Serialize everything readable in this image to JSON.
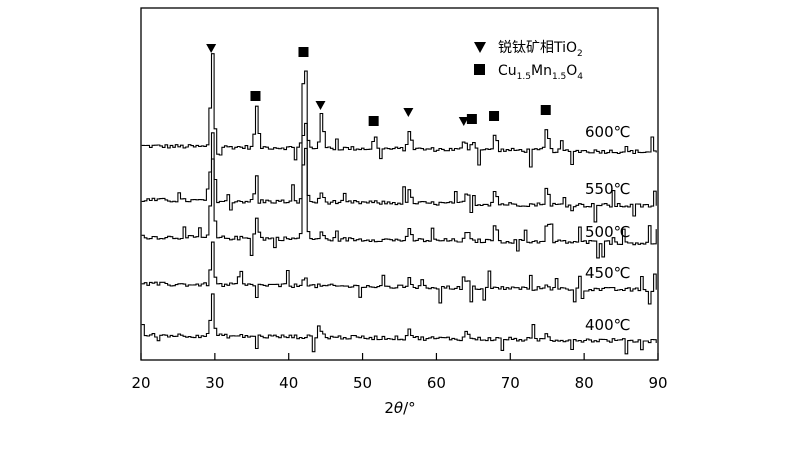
{
  "chart_data": {
    "type": "line",
    "xlabel_parts": {
      "prefix": "2",
      "symbol": "θ",
      "suffix": "/°"
    },
    "xlim": [
      20,
      90
    ],
    "xticks": [
      20,
      30,
      40,
      50,
      60,
      70,
      80,
      90
    ],
    "y_ticks_shown": false,
    "grid": false,
    "legend": {
      "placement": "top-right",
      "entries": [
        {
          "marker": "triangle-down",
          "label": "锐钛矿相TiO",
          "subscript": "2"
        },
        {
          "marker": "square",
          "parts": [
            {
              "t": "Cu",
              "sub": false
            },
            {
              "t": "1.5",
              "sub": true
            },
            {
              "t": "Mn",
              "sub": false
            },
            {
              "t": "1.5",
              "sub": true
            },
            {
              "t": "O",
              "sub": false
            },
            {
              "t": "4",
              "sub": true
            }
          ]
        }
      ]
    },
    "peaks": {
      "anatase_TiO2": [
        29.5,
        44.3,
        56.2,
        63.7
      ],
      "Cu1.5Mn1.5O4": [
        35.5,
        42.0,
        51.5,
        64.8,
        67.8,
        74.8
      ]
    },
    "series": [
      {
        "name": "600℃",
        "peaks": [
          [
            29.5,
            96
          ],
          [
            35.5,
            42
          ],
          [
            42.0,
            96
          ],
          [
            44.3,
            37
          ],
          [
            51.5,
            12
          ],
          [
            56.2,
            26
          ],
          [
            63.7,
            10
          ],
          [
            64.8,
            10
          ],
          [
            67.8,
            16
          ],
          [
            74.8,
            22
          ]
        ]
      },
      {
        "name": "550℃",
        "peaks": [
          [
            29.5,
            70
          ],
          [
            35.5,
            25
          ],
          [
            42.0,
            98
          ],
          [
            44.3,
            10
          ],
          [
            56.2,
            12
          ],
          [
            64.0,
            12
          ],
          [
            67.8,
            14
          ],
          [
            74.8,
            18
          ]
        ]
      },
      {
        "name": "500℃",
        "peaks": [
          [
            29.5,
            80
          ],
          [
            35.5,
            20
          ],
          [
            42.0,
            112
          ],
          [
            44.3,
            6
          ],
          [
            56.2,
            10
          ],
          [
            64.0,
            10
          ],
          [
            67.8,
            18
          ],
          [
            74.8,
            16
          ]
        ]
      },
      {
        "name": "450℃",
        "peaks": [
          [
            29.5,
            42
          ],
          [
            42.0,
            12
          ],
          [
            56.2,
            10
          ],
          [
            64.0,
            8
          ],
          [
            74.8,
            6
          ]
        ]
      },
      {
        "name": "400℃",
        "peaks": [
          [
            29.5,
            42
          ],
          [
            44.3,
            6
          ],
          [
            56.2,
            10
          ],
          [
            64.0,
            8
          ],
          [
            74.8,
            6
          ]
        ]
      }
    ]
  }
}
